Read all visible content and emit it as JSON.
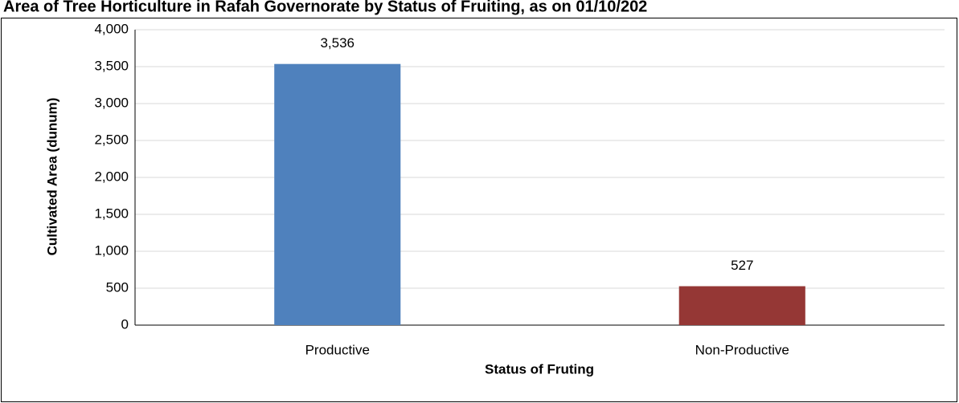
{
  "chart_data": {
    "type": "bar",
    "title": "Area of Tree Horticulture in Rafah Governorate by Status of Fruiting, as on 01/10/202",
    "x_label": "Status of Fruting",
    "y_label": "Cultivated Area (dunum)",
    "categories": [
      "Productive",
      "Non-Productive"
    ],
    "series": [
      {
        "name": "Cultivated Area",
        "colors": [
          "#4f81bd",
          "#953735"
        ],
        "values": [
          3536,
          527
        ],
        "value_labels": [
          "3,536",
          "527"
        ]
      }
    ],
    "ylim": [
      0,
      4000
    ],
    "yticks": [
      0,
      {
        "value": 500,
        "label": "500"
      },
      {
        "value": 1000,
        "label": "1,000"
      },
      {
        "value": 1500,
        "label": "1,500"
      },
      {
        "value": 2000,
        "label": "2,000"
      },
      {
        "value": 2500,
        "label": "2,500"
      },
      {
        "value": 3000,
        "label": "3,000"
      },
      {
        "value": 3500,
        "label": "3,500"
      },
      {
        "value": 4000,
        "label": "4,000"
      }
    ],
    "grid": true
  }
}
